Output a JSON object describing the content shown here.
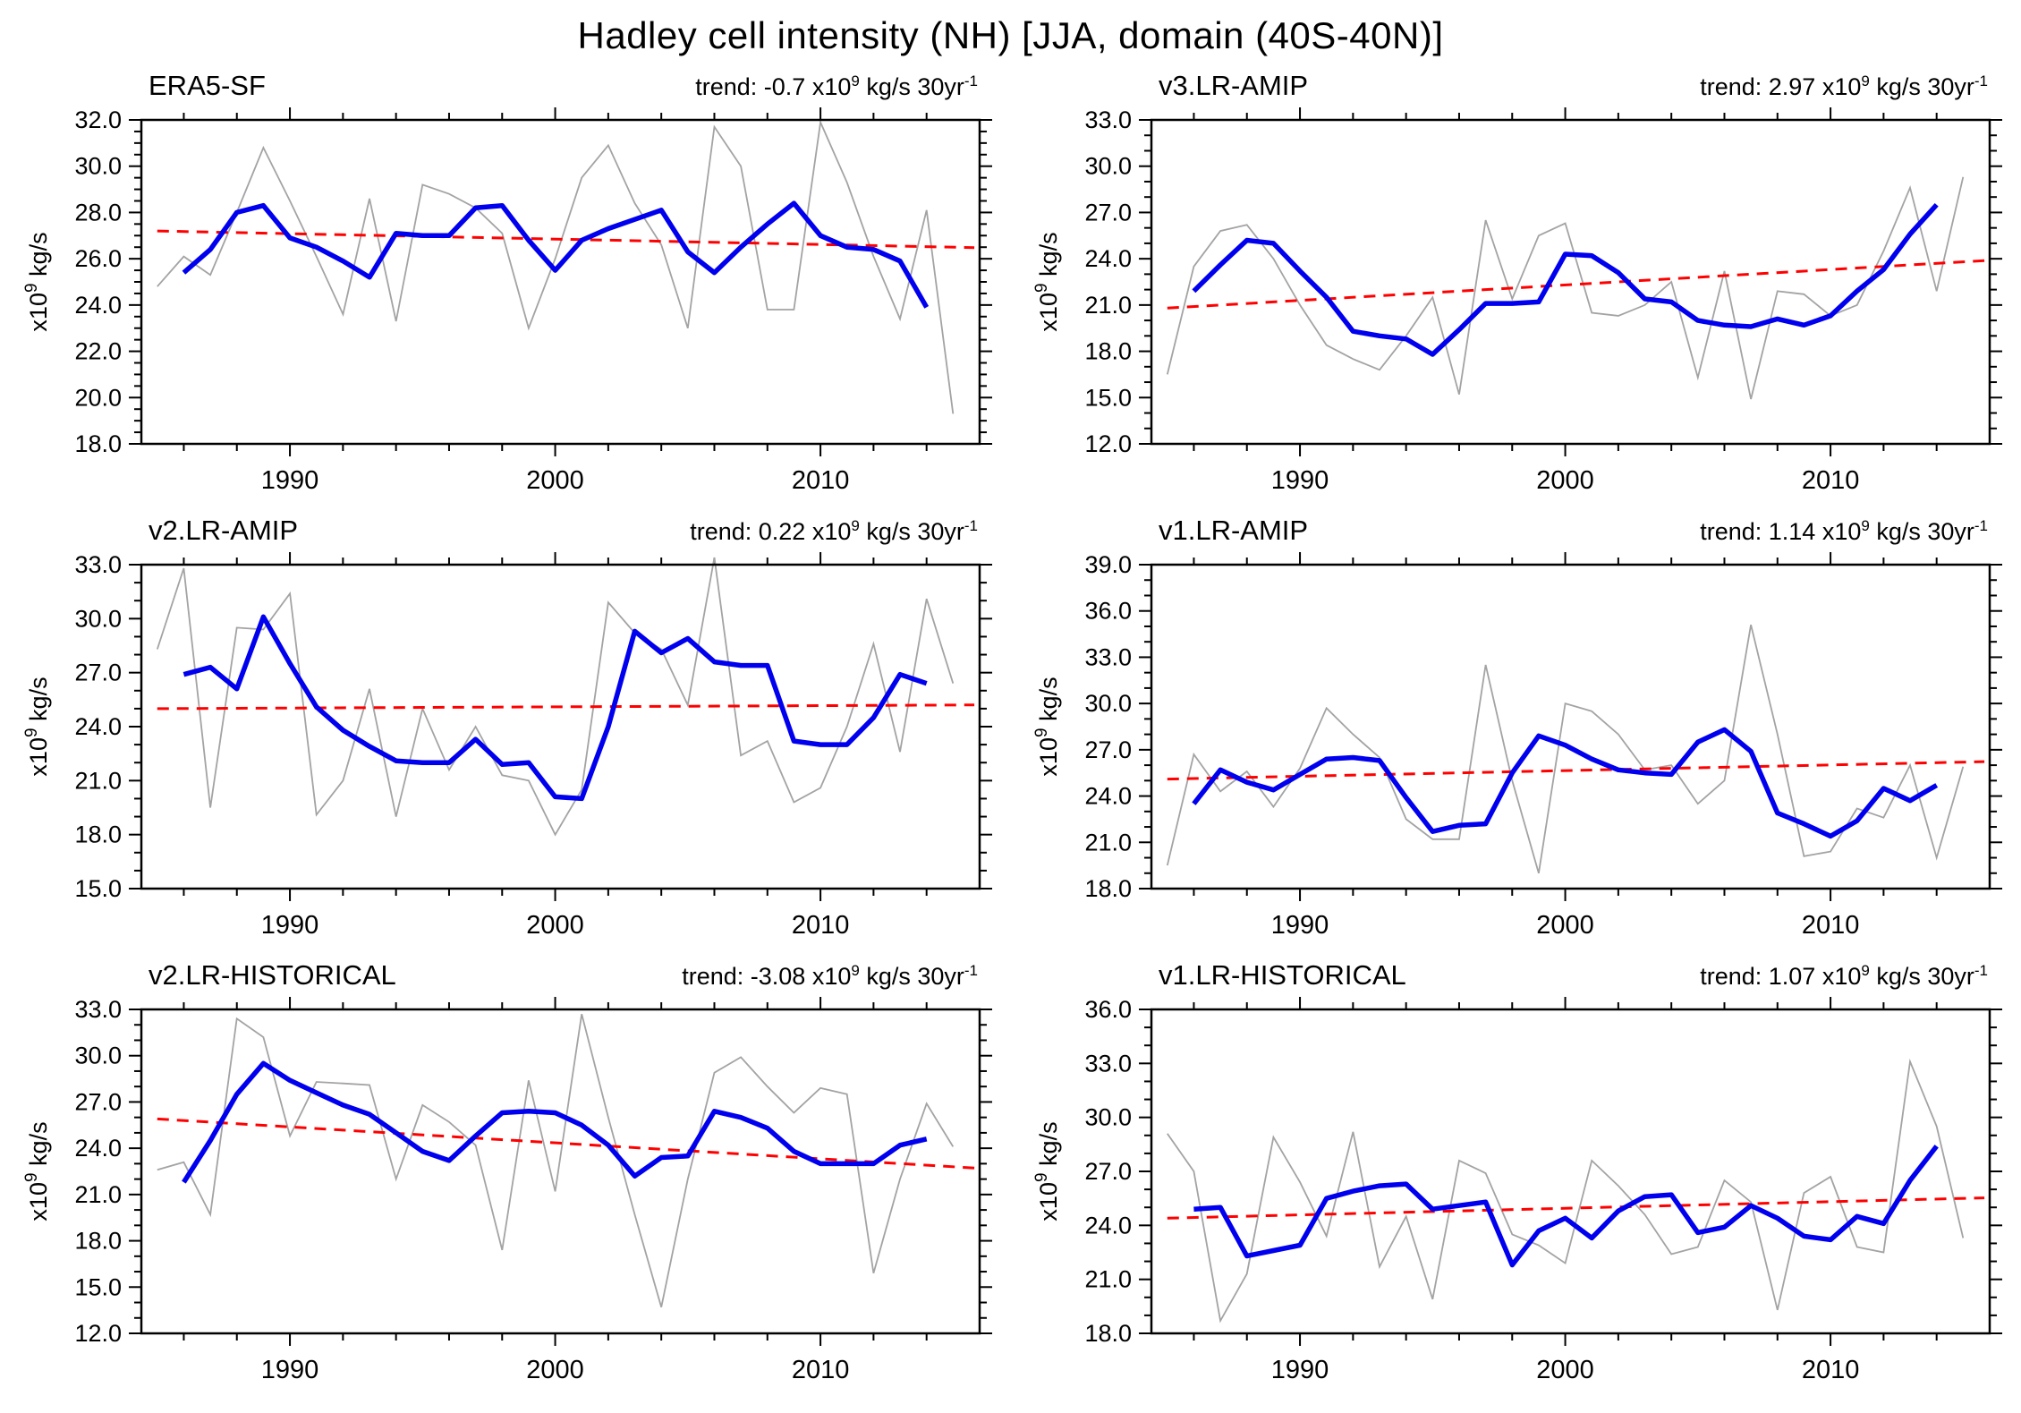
{
  "figure": {
    "title": "Hadley cell intensity (NH) [JJA, domain (40S-40N)]"
  },
  "colors": {
    "raw_line": "#a3a3a3",
    "smoothed_line": "#0000ee",
    "trend_line": "#ff0000",
    "axis": "#000000",
    "background": "#ffffff"
  },
  "x_axis": {
    "years_start": 1985,
    "years_end": 2015,
    "domain": [
      1984.4,
      2016.0
    ],
    "major_ticks": [
      1990,
      2000,
      2010
    ],
    "tick_labels": [
      "1990",
      "2000",
      "2010"
    ],
    "minor_ticks": [
      1986,
      1988,
      1992,
      1994,
      1996,
      1998,
      2002,
      2004,
      2006,
      2008,
      2012,
      2014
    ]
  },
  "ylabel_parts": {
    "base": "x10",
    "exp": "9",
    "unit": " kg/s"
  },
  "chart_data": [
    {
      "type": "line",
      "title": "ERA5-SF",
      "trend_label": {
        "t1": "trend: -0.7 x10",
        "sup1": "9",
        "t2": " kg/s 30yr",
        "sup2": "-1"
      },
      "trend_value_per_30yr": -0.7,
      "ylim": [
        18.0,
        32.0
      ],
      "y_major_step": 2.0,
      "y_minor_step": 0.5,
      "y_tick_labels": [
        "32.0",
        "30.0",
        "28.0",
        "26.0",
        "24.0",
        "22.0",
        "20.0",
        "18.0"
      ],
      "series": [
        {
          "name": "annual",
          "start_year": 1985,
          "values": [
            24.8,
            26.1,
            25.3,
            28.0,
            30.8,
            28.5,
            26.1,
            23.6,
            28.6,
            23.3,
            29.2,
            28.8,
            28.2,
            27.1,
            23.0,
            26.0,
            29.5,
            30.9,
            28.4,
            26.6,
            23.0,
            31.7,
            30.0,
            23.8,
            23.8,
            31.9,
            29.3,
            26.1,
            23.4,
            28.1,
            19.3
          ]
        },
        {
          "name": "smoothed",
          "start_year": 1986,
          "values": [
            25.4,
            26.4,
            28.0,
            28.3,
            26.9,
            26.5,
            25.9,
            25.2,
            27.1,
            27.0,
            27.0,
            28.2,
            28.3,
            26.8,
            25.5,
            26.8,
            27.3,
            27.7,
            28.1,
            26.3,
            25.4,
            26.5,
            27.5,
            28.4,
            27.0,
            26.5,
            26.4,
            25.9,
            23.9
          ]
        },
        {
          "name": "linear-trend",
          "start": {
            "year": 1985,
            "value": 27.2
          },
          "end": {
            "year": 2015,
            "value": 26.5
          }
        }
      ]
    },
    {
      "type": "line",
      "title": "v3.LR-AMIP",
      "trend_label": {
        "t1": "trend: 2.97 x10",
        "sup1": "9",
        "t2": " kg/s 30yr",
        "sup2": "-1"
      },
      "trend_value_per_30yr": 2.97,
      "ylim": [
        12.0,
        33.0
      ],
      "y_major_step": 3.0,
      "y_minor_step": 1.0,
      "y_tick_labels": [
        "33.0",
        "30.0",
        "27.0",
        "24.0",
        "21.0",
        "18.0",
        "15.0",
        "12.0"
      ],
      "series": [
        {
          "name": "annual",
          "start_year": 1985,
          "values": [
            16.5,
            23.5,
            25.8,
            26.2,
            24.0,
            21.0,
            18.4,
            17.5,
            16.8,
            19.0,
            21.5,
            15.2,
            26.5,
            21.4,
            25.5,
            26.3,
            20.5,
            20.3,
            21.0,
            22.5,
            16.3,
            23.2,
            14.9,
            21.9,
            21.7,
            20.3,
            21.0,
            24.5,
            28.6,
            21.9,
            29.3
          ]
        },
        {
          "name": "smoothed",
          "start_year": 1986,
          "values": [
            21.9,
            23.6,
            25.2,
            25.0,
            23.2,
            21.5,
            19.3,
            19.0,
            18.8,
            17.8,
            19.4,
            21.1,
            21.1,
            21.2,
            24.3,
            24.2,
            23.1,
            21.4,
            21.2,
            20.0,
            19.7,
            19.6,
            20.1,
            19.7,
            20.3,
            21.9,
            23.3,
            25.6,
            27.5
          ]
        },
        {
          "name": "linear-trend",
          "start": {
            "year": 1985,
            "value": 20.8
          },
          "end": {
            "year": 2015,
            "value": 23.8
          }
        }
      ]
    },
    {
      "type": "line",
      "title": "v2.LR-AMIP",
      "trend_label": {
        "t1": "trend: 0.22 x10",
        "sup1": "9",
        "t2": " kg/s 30yr",
        "sup2": "-1"
      },
      "trend_value_per_30yr": 0.22,
      "ylim": [
        15.0,
        33.0
      ],
      "y_major_step": 3.0,
      "y_minor_step": 1.0,
      "y_tick_labels": [
        "33.0",
        "30.0",
        "27.0",
        "24.0",
        "21.0",
        "18.0",
        "15.0"
      ],
      "series": [
        {
          "name": "annual",
          "start_year": 1985,
          "values": [
            28.3,
            32.8,
            19.5,
            29.5,
            29.4,
            31.4,
            19.1,
            21.0,
            26.1,
            19.0,
            25.0,
            21.6,
            24.0,
            21.3,
            21.0,
            18.0,
            20.5,
            30.9,
            29.2,
            28.3,
            25.2,
            33.4,
            22.4,
            23.2,
            19.8,
            20.6,
            24.0,
            28.6,
            22.6,
            31.1,
            26.4
          ]
        },
        {
          "name": "smoothed",
          "start_year": 1986,
          "values": [
            26.9,
            27.3,
            26.1,
            30.1,
            27.5,
            25.1,
            23.8,
            22.9,
            22.1,
            22.0,
            22.0,
            23.3,
            21.9,
            22.0,
            20.1,
            20.0,
            24.0,
            29.3,
            28.1,
            28.9,
            27.6,
            27.4,
            27.4,
            23.2,
            23.0,
            23.0,
            24.5,
            26.9,
            26.4
          ]
        },
        {
          "name": "linear-trend",
          "start": {
            "year": 1985,
            "value": 25.0
          },
          "end": {
            "year": 2015,
            "value": 25.2
          }
        }
      ]
    },
    {
      "type": "line",
      "title": "v1.LR-AMIP",
      "trend_label": {
        "t1": "trend: 1.14 x10",
        "sup1": "9",
        "t2": " kg/s 30yr",
        "sup2": "-1"
      },
      "trend_value_per_30yr": 1.14,
      "ylim": [
        18.0,
        39.0
      ],
      "y_major_step": 3.0,
      "y_minor_step": 1.0,
      "y_tick_labels": [
        "39.0",
        "36.0",
        "33.0",
        "30.0",
        "27.0",
        "24.0",
        "21.0",
        "18.0"
      ],
      "series": [
        {
          "name": "annual",
          "start_year": 1985,
          "values": [
            19.5,
            26.7,
            24.3,
            25.6,
            23.3,
            25.8,
            29.7,
            28.0,
            26.5,
            22.5,
            21.2,
            21.2,
            32.5,
            25.0,
            19.0,
            30.0,
            29.5,
            28.0,
            25.7,
            26.0,
            23.5,
            25.0,
            35.1,
            28.0,
            20.1,
            20.4,
            23.2,
            22.6,
            26.0,
            20.0,
            25.9
          ]
        },
        {
          "name": "smoothed",
          "start_year": 1986,
          "values": [
            23.5,
            25.7,
            24.9,
            24.4,
            25.4,
            26.4,
            26.5,
            26.3,
            23.9,
            21.7,
            22.1,
            22.2,
            25.5,
            27.9,
            27.3,
            26.4,
            25.7,
            25.5,
            25.4,
            27.5,
            28.3,
            26.9,
            22.9,
            22.2,
            21.4,
            22.4,
            24.5,
            23.7,
            24.7
          ]
        },
        {
          "name": "linear-trend",
          "start": {
            "year": 1985,
            "value": 25.1
          },
          "end": {
            "year": 2015,
            "value": 26.2
          }
        }
      ]
    },
    {
      "type": "line",
      "title": "v2.LR-HISTORICAL",
      "trend_label": {
        "t1": "trend: -3.08 x10",
        "sup1": "9",
        "t2": " kg/s 30yr",
        "sup2": "-1"
      },
      "trend_value_per_30yr": -3.08,
      "ylim": [
        12.0,
        33.0
      ],
      "y_major_step": 3.0,
      "y_minor_step": 1.0,
      "y_tick_labels": [
        "33.0",
        "30.0",
        "27.0",
        "24.0",
        "21.0",
        "18.0",
        "15.0",
        "12.0"
      ],
      "series": [
        {
          "name": "annual",
          "start_year": 1985,
          "values": [
            22.6,
            23.1,
            19.7,
            32.4,
            31.2,
            24.8,
            28.3,
            28.2,
            28.1,
            22.0,
            26.8,
            25.7,
            24.2,
            17.4,
            28.4,
            21.2,
            32.7,
            26.0,
            19.7,
            13.7,
            22.0,
            28.9,
            29.9,
            28.0,
            26.3,
            27.9,
            27.5,
            15.9,
            22.0,
            26.9,
            24.1
          ]
        },
        {
          "name": "smoothed",
          "start_year": 1986,
          "values": [
            21.8,
            24.5,
            27.5,
            29.5,
            28.4,
            27.6,
            26.8,
            26.2,
            25.0,
            23.8,
            23.2,
            24.8,
            26.3,
            26.4,
            26.3,
            25.5,
            24.2,
            22.2,
            23.4,
            23.5,
            26.4,
            26.0,
            25.3,
            23.8,
            23.0,
            23.0,
            23.0,
            24.2,
            24.6
          ]
        },
        {
          "name": "linear-trend",
          "start": {
            "year": 1985,
            "value": 25.9
          },
          "end": {
            "year": 2015,
            "value": 22.8
          }
        }
      ]
    },
    {
      "type": "line",
      "title": "v1.LR-HISTORICAL",
      "trend_label": {
        "t1": "trend: 1.07 x10",
        "sup1": "9",
        "t2": " kg/s 30yr",
        "sup2": "-1"
      },
      "trend_value_per_30yr": 1.07,
      "ylim": [
        18.0,
        36.0
      ],
      "y_major_step": 3.0,
      "y_minor_step": 1.0,
      "y_tick_labels": [
        "36.0",
        "33.0",
        "30.0",
        "27.0",
        "24.0",
        "21.0",
        "18.0"
      ],
      "series": [
        {
          "name": "annual",
          "start_year": 1985,
          "values": [
            29.1,
            27.0,
            18.7,
            21.3,
            28.9,
            26.4,
            23.4,
            29.2,
            21.7,
            24.5,
            19.9,
            27.6,
            26.9,
            23.5,
            22.9,
            21.9,
            27.6,
            26.2,
            24.6,
            22.4,
            22.8,
            26.5,
            25.3,
            19.3,
            25.8,
            26.7,
            22.8,
            22.5,
            33.1,
            29.5,
            23.3
          ]
        },
        {
          "name": "smoothed",
          "start_year": 1986,
          "values": [
            24.9,
            25.0,
            22.3,
            22.6,
            22.9,
            25.5,
            25.9,
            26.2,
            26.3,
            24.9,
            25.1,
            25.3,
            21.8,
            23.7,
            24.4,
            23.3,
            24.8,
            25.6,
            25.7,
            23.6,
            23.9,
            25.1,
            24.4,
            23.4,
            23.2,
            24.5,
            24.1,
            26.5,
            28.4
          ]
        },
        {
          "name": "linear-trend",
          "start": {
            "year": 1985,
            "value": 24.4
          },
          "end": {
            "year": 2015,
            "value": 25.5
          }
        }
      ]
    }
  ]
}
